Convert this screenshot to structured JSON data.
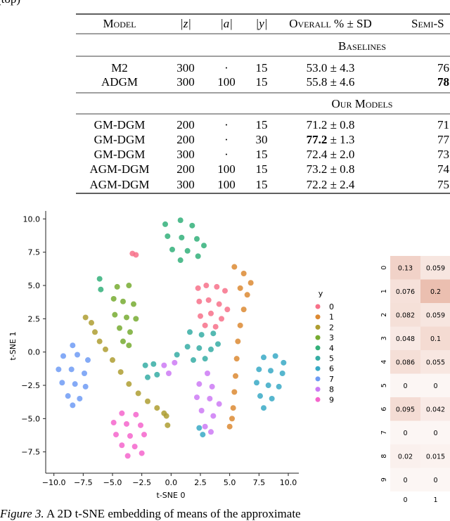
{
  "header_fragment": "(top)",
  "table": {
    "header": [
      "Model",
      "|z|",
      "|a|",
      "|y|",
      "Overall % ± SD",
      "Semi-S"
    ],
    "sections": [
      {
        "title": "Baselines",
        "rows": [
          [
            "M2",
            "300",
            "·",
            "15",
            "53.0 ± 4.3",
            "76"
          ],
          [
            "ADGM",
            "300",
            "100",
            "15",
            "55.8 ± 4.6",
            {
              "bold": "78"
            }
          ]
        ]
      },
      {
        "title": "Our Models",
        "rows": [
          [
            "GM-DGM",
            "200",
            "·",
            "15",
            "71.2 ± 0.8",
            "71"
          ],
          [
            "GM-DGM",
            "200",
            "·",
            "30",
            {
              "bold": "77.2",
              "text": " ± 1.3"
            },
            "77"
          ],
          [
            "GM-DGM",
            "300",
            "·",
            "15",
            "72.4 ± 2.0",
            "73"
          ],
          [
            "AGM-DGM",
            "200",
            "100",
            "15",
            "73.2 ± 0.8",
            "74"
          ],
          [
            "AGM-DGM",
            "300",
            "100",
            "15",
            "72.2 ± 2.4",
            "75"
          ]
        ]
      }
    ]
  },
  "chart_data": [
    {
      "type": "scatter",
      "x_label": "t-SNE 0",
      "y_label": "t-SNE 1",
      "legend_title": "y",
      "xlim": [
        -10.7,
        10.9
      ],
      "ylim": [
        -9.1,
        10.6
      ],
      "xticks": [
        {
          "value": -10,
          "label": "−10.0"
        },
        {
          "value": -7.5,
          "label": "−7.5"
        },
        {
          "value": -5,
          "label": "−5.0"
        },
        {
          "value": -2.5,
          "label": "−2.5"
        },
        {
          "value": 0,
          "label": "0.0"
        },
        2.5,
        {
          "value": 5,
          "label": "5.0"
        },
        7.5,
        {
          "value": 10,
          "label": "10.0"
        }
      ],
      "yticks": [
        {
          "value": -7.5,
          "label": "−7.5"
        },
        {
          "value": -5,
          "label": "−5.0"
        },
        {
          "value": -2.5,
          "label": "−2.5"
        },
        {
          "value": 0,
          "label": "0.0"
        },
        2.5,
        {
          "value": 5,
          "label": "5.0"
        },
        7.5,
        {
          "value": 10,
          "label": "10.0"
        }
      ],
      "series": [
        {
          "name": "0",
          "color": "#f77189",
          "x": [
            2.3,
            3.0,
            3.9,
            4.6,
            2.4,
            3.2,
            4.1,
            4.8,
            2.5,
            3.4,
            4.3,
            2.9,
            3.8,
            -3.3,
            -3.0
          ],
          "y": [
            4.8,
            5.0,
            4.9,
            4.6,
            3.8,
            3.9,
            3.6,
            3.2,
            2.7,
            2.9,
            2.5,
            2.0,
            1.9,
            7.4,
            7.3
          ]
        },
        {
          "name": "1",
          "color": "#dc8932",
          "x": [
            5.4,
            6.2,
            6.8,
            5.9,
            6.5,
            6.2,
            5.9,
            5.7,
            5.6,
            5.5,
            5.4,
            5.3,
            5.2,
            5.0
          ],
          "y": [
            6.4,
            5.9,
            5.2,
            4.8,
            4.3,
            3.2,
            2.0,
            0.8,
            -0.5,
            -1.8,
            -3.0,
            -4.2,
            -5.0,
            -5.6
          ]
        },
        {
          "name": "2",
          "color": "#ae9d31",
          "x": [
            -7.3,
            -6.8,
            -6.5,
            -6.1,
            -5.6,
            -5.0,
            -4.3,
            -3.6,
            -2.8,
            -2.0,
            -1.2,
            -0.4,
            -0.3,
            -0.6
          ],
          "y": [
            2.6,
            2.2,
            1.5,
            0.8,
            0.2,
            -0.6,
            -1.5,
            -2.4,
            -3.1,
            -3.7,
            -4.2,
            -4.8,
            -5.5,
            -4.6
          ]
        },
        {
          "name": "3",
          "color": "#77ab31",
          "x": [
            -4.6,
            -3.6,
            -4.9,
            -4.1,
            -3.2,
            -4.8,
            -3.8,
            -3.0,
            -4.4,
            -3.5,
            -4.1,
            -3.6
          ],
          "y": [
            4.9,
            5.0,
            4.0,
            3.8,
            3.6,
            2.8,
            2.6,
            2.5,
            1.8,
            1.5,
            0.8,
            0.5
          ]
        },
        {
          "name": "4",
          "color": "#33b07a",
          "x": [
            -0.5,
            0.8,
            1.8,
            -0.3,
            0.9,
            2.2,
            2.8,
            0.1,
            1.4,
            2.3,
            0.8,
            -6.1,
            -6.0
          ],
          "y": [
            9.6,
            9.9,
            9.5,
            8.7,
            8.6,
            8.5,
            8.0,
            7.7,
            7.6,
            7.2,
            6.9,
            5.5,
            4.7
          ]
        },
        {
          "name": "5",
          "color": "#36ada4",
          "x": [
            1.6,
            2.6,
            3.6,
            1.4,
            2.4,
            3.4,
            4.0,
            1.9,
            2.9,
            -2.2,
            -1.5,
            -2.0,
            -1.2,
            0.5
          ],
          "y": [
            1.5,
            1.3,
            1.4,
            0.4,
            0.3,
            0.2,
            0.6,
            -0.6,
            -0.5,
            -1.0,
            -0.9,
            -1.9,
            -1.7,
            -0.2
          ]
        },
        {
          "name": "6",
          "color": "#38a9c5",
          "x": [
            7.9,
            8.9,
            9.6,
            7.5,
            8.5,
            9.5,
            7.3,
            8.3,
            9.2,
            7.6,
            8.6,
            7.9,
            2.4,
            2.7
          ],
          "y": [
            -0.4,
            -0.3,
            -0.8,
            -1.3,
            -1.4,
            -1.6,
            -2.3,
            -2.5,
            -2.6,
            -3.3,
            -3.5,
            -4.2,
            -5.7,
            -6.2
          ]
        },
        {
          "name": "7",
          "color": "#6e9bf4",
          "x": [
            -8.4,
            -9.2,
            -8.0,
            -7.1,
            -9.6,
            -8.5,
            -7.4,
            -9.3,
            -8.2,
            -7.3,
            -8.8,
            -7.8,
            -8.4
          ],
          "y": [
            0.5,
            -0.3,
            -0.2,
            -0.6,
            -1.3,
            -1.3,
            -1.6,
            -2.3,
            -2.4,
            -2.6,
            -3.3,
            -3.5,
            -4.0
          ]
        },
        {
          "name": "8",
          "color": "#cc7af4",
          "x": [
            -0.6,
            0.3,
            -0.2,
            3.1,
            2.4,
            3.5,
            2.2,
            3.3,
            4.1,
            2.6,
            3.6,
            2.9,
            3.4
          ],
          "y": [
            -1.0,
            -0.8,
            -1.6,
            -1.6,
            -2.4,
            -2.6,
            -3.4,
            -3.5,
            -3.9,
            -4.4,
            -4.8,
            -5.6,
            -6.0
          ]
        },
        {
          "name": "9",
          "color": "#f565cc",
          "x": [
            -4.2,
            -3.0,
            -4.9,
            -3.8,
            -2.6,
            -4.7,
            -3.5,
            -2.3,
            -4.2,
            -3.1,
            -2.5,
            -3.7
          ],
          "y": [
            -4.6,
            -4.7,
            -5.3,
            -5.4,
            -5.5,
            -6.2,
            -6.3,
            -6.2,
            -7.0,
            -7.1,
            -7.6,
            -7.8
          ]
        }
      ]
    },
    {
      "type": "heatmap",
      "color": "#e3a48f",
      "x_categories": [
        "0",
        "1"
      ],
      "y_categories": [
        "0",
        "1",
        "2",
        "3",
        "4",
        "5",
        "6",
        "7",
        "8",
        "9"
      ],
      "values": [
        [
          0.13,
          0.059
        ],
        [
          0.076,
          0.2
        ],
        [
          0.082,
          0.059
        ],
        [
          0.048,
          0.1
        ],
        [
          0.086,
          0.055
        ],
        [
          0,
          0
        ],
        [
          0.095,
          0.042
        ],
        [
          0,
          0
        ],
        [
          0.02,
          0.015
        ],
        [
          0,
          0
        ]
      ]
    }
  ],
  "caption": {
    "label": "Figure 3.",
    "text": " A 2D t-SNE embedding of means of the approximate"
  }
}
